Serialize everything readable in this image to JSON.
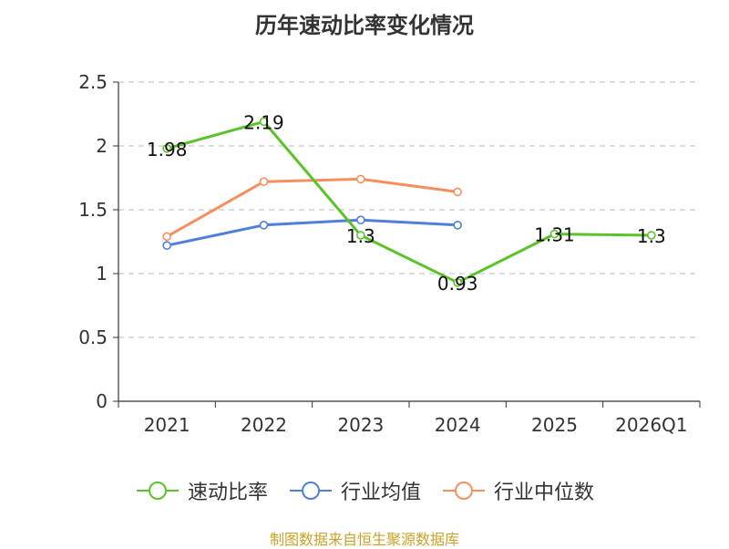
{
  "title": "历年速动比率变化情况",
  "source": "制图数据来自恒生聚源数据库",
  "chart_data": {
    "type": "line",
    "title": "历年速动比率变化情况",
    "categories": [
      "2021",
      "2022",
      "2023",
      "2024",
      "2025",
      "2026Q1"
    ],
    "ylim": [
      0,
      2.5
    ],
    "yticks": [
      "0",
      "0.5",
      "1",
      "1.5",
      "2",
      "2.5"
    ],
    "grid": true,
    "legend_position": "bottom",
    "series": [
      {
        "name": "速动比率",
        "color": "#5cc22a",
        "values": [
          1.98,
          2.19,
          1.3,
          0.93,
          1.31,
          1.3
        ],
        "labels": [
          "1.98",
          "2.19",
          "1.3",
          "0.93",
          "1.31",
          "1.3"
        ]
      },
      {
        "name": "行业均值",
        "color": "#4f7fd8",
        "values": [
          1.22,
          1.38,
          1.42,
          1.38,
          null,
          null
        ]
      },
      {
        "name": "行业中位数",
        "color": "#f5905e",
        "values": [
          1.29,
          1.72,
          1.74,
          1.64,
          null,
          null
        ]
      }
    ]
  }
}
